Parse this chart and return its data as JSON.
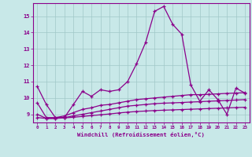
{
  "x": [
    0,
    1,
    2,
    3,
    4,
    5,
    6,
    7,
    8,
    9,
    10,
    11,
    12,
    13,
    14,
    15,
    16,
    17,
    18,
    19,
    20,
    21,
    22,
    23
  ],
  "line1": [
    10.7,
    9.6,
    8.8,
    8.8,
    9.6,
    10.4,
    10.1,
    10.5,
    10.4,
    10.5,
    11.0,
    12.1,
    13.4,
    15.3,
    15.6,
    14.5,
    13.9,
    10.8,
    9.8,
    10.5,
    9.9,
    9.0,
    10.6,
    10.3
  ],
  "line2": [
    9.7,
    8.8,
    8.8,
    8.9,
    9.1,
    9.3,
    9.4,
    9.55,
    9.6,
    9.7,
    9.8,
    9.9,
    9.95,
    10.0,
    10.05,
    10.1,
    10.15,
    10.2,
    10.2,
    10.22,
    10.25,
    10.28,
    10.3,
    10.32
  ],
  "line3": [
    9.0,
    8.75,
    8.75,
    8.8,
    8.9,
    9.0,
    9.1,
    9.2,
    9.3,
    9.4,
    9.5,
    9.55,
    9.6,
    9.65,
    9.68,
    9.7,
    9.72,
    9.75,
    9.77,
    9.8,
    9.82,
    9.85,
    9.87,
    9.9
  ],
  "line4": [
    8.8,
    8.75,
    8.75,
    8.78,
    8.82,
    8.87,
    8.92,
    8.97,
    9.02,
    9.08,
    9.13,
    9.17,
    9.2,
    9.23,
    9.25,
    9.27,
    9.29,
    9.31,
    9.33,
    9.35,
    9.37,
    9.39,
    9.41,
    9.43
  ],
  "line_color": "#8b008b",
  "bg_color": "#c8e8e8",
  "grid_color": "#a0c8c8",
  "xlabel": "Windchill (Refroidissement éolien,°C)",
  "xlim": [
    -0.5,
    23.5
  ],
  "ylim": [
    8.5,
    15.8
  ],
  "yticks": [
    9,
    10,
    11,
    12,
    13,
    14,
    15
  ],
  "xticks": [
    0,
    1,
    2,
    3,
    4,
    5,
    6,
    7,
    8,
    9,
    10,
    11,
    12,
    13,
    14,
    15,
    16,
    17,
    18,
    19,
    20,
    21,
    22,
    23
  ]
}
